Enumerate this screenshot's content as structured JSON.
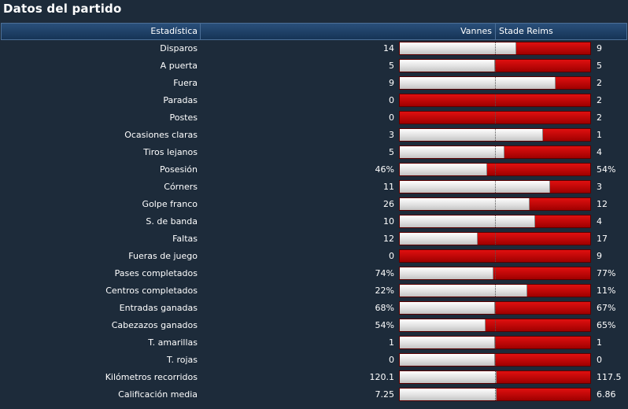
{
  "title": "Datos del partido",
  "header": {
    "stat": "Estadística",
    "home": "Vannes",
    "away": "Stade Reims"
  },
  "colors": {
    "home_bar": "#e0e0e0",
    "away_bar": "#c00000",
    "background": "#1d2b3a",
    "header": "#1f4268"
  },
  "stats": [
    {
      "label": "Disparos",
      "home": "14",
      "away": "9",
      "home_share": 0.61
    },
    {
      "label": "A puerta",
      "home": "5",
      "away": "5",
      "home_share": 0.5
    },
    {
      "label": "Fuera",
      "home": "9",
      "away": "2",
      "home_share": 0.82
    },
    {
      "label": "Paradas",
      "home": "0",
      "away": "2",
      "home_share": 0
    },
    {
      "label": "Postes",
      "home": "0",
      "away": "2",
      "home_share": 0
    },
    {
      "label": "Ocasiones claras",
      "home": "3",
      "away": "1",
      "home_share": 0.75
    },
    {
      "label": "Tiros lejanos",
      "home": "5",
      "away": "4",
      "home_share": 0.55
    },
    {
      "label": "Posesión",
      "home": "46%",
      "away": "54%",
      "home_share": 0.46
    },
    {
      "label": "Córners",
      "home": "11",
      "away": "3",
      "home_share": 0.79
    },
    {
      "label": "Golpe franco",
      "home": "26",
      "away": "12",
      "home_share": 0.68
    },
    {
      "label": "S. de banda",
      "home": "10",
      "away": "4",
      "home_share": 0.71
    },
    {
      "label": "Faltas",
      "home": "12",
      "away": "17",
      "home_share": 0.41
    },
    {
      "label": "Fueras de juego",
      "home": "0",
      "away": "9",
      "home_share": 0
    },
    {
      "label": "Pases completados",
      "home": "74%",
      "away": "77%",
      "home_share": 0.49
    },
    {
      "label": "Centros completados",
      "home": "22%",
      "away": "11%",
      "home_share": 0.67
    },
    {
      "label": "Entradas ganadas",
      "home": "68%",
      "away": "67%",
      "home_share": 0.5
    },
    {
      "label": "Cabezazos ganados",
      "home": "54%",
      "away": "65%",
      "home_share": 0.45
    },
    {
      "label": "T. amarillas",
      "home": "1",
      "away": "1",
      "home_share": 0.5
    },
    {
      "label": "T. rojas",
      "home": "0",
      "away": "0",
      "home_share": 0.5
    },
    {
      "label": "Kilómetros recorridos",
      "home": "120.1",
      "away": "117.5",
      "home_share": 0.51
    },
    {
      "label": "Calificación media",
      "home": "7.25",
      "away": "6.86",
      "home_share": 0.51
    }
  ]
}
